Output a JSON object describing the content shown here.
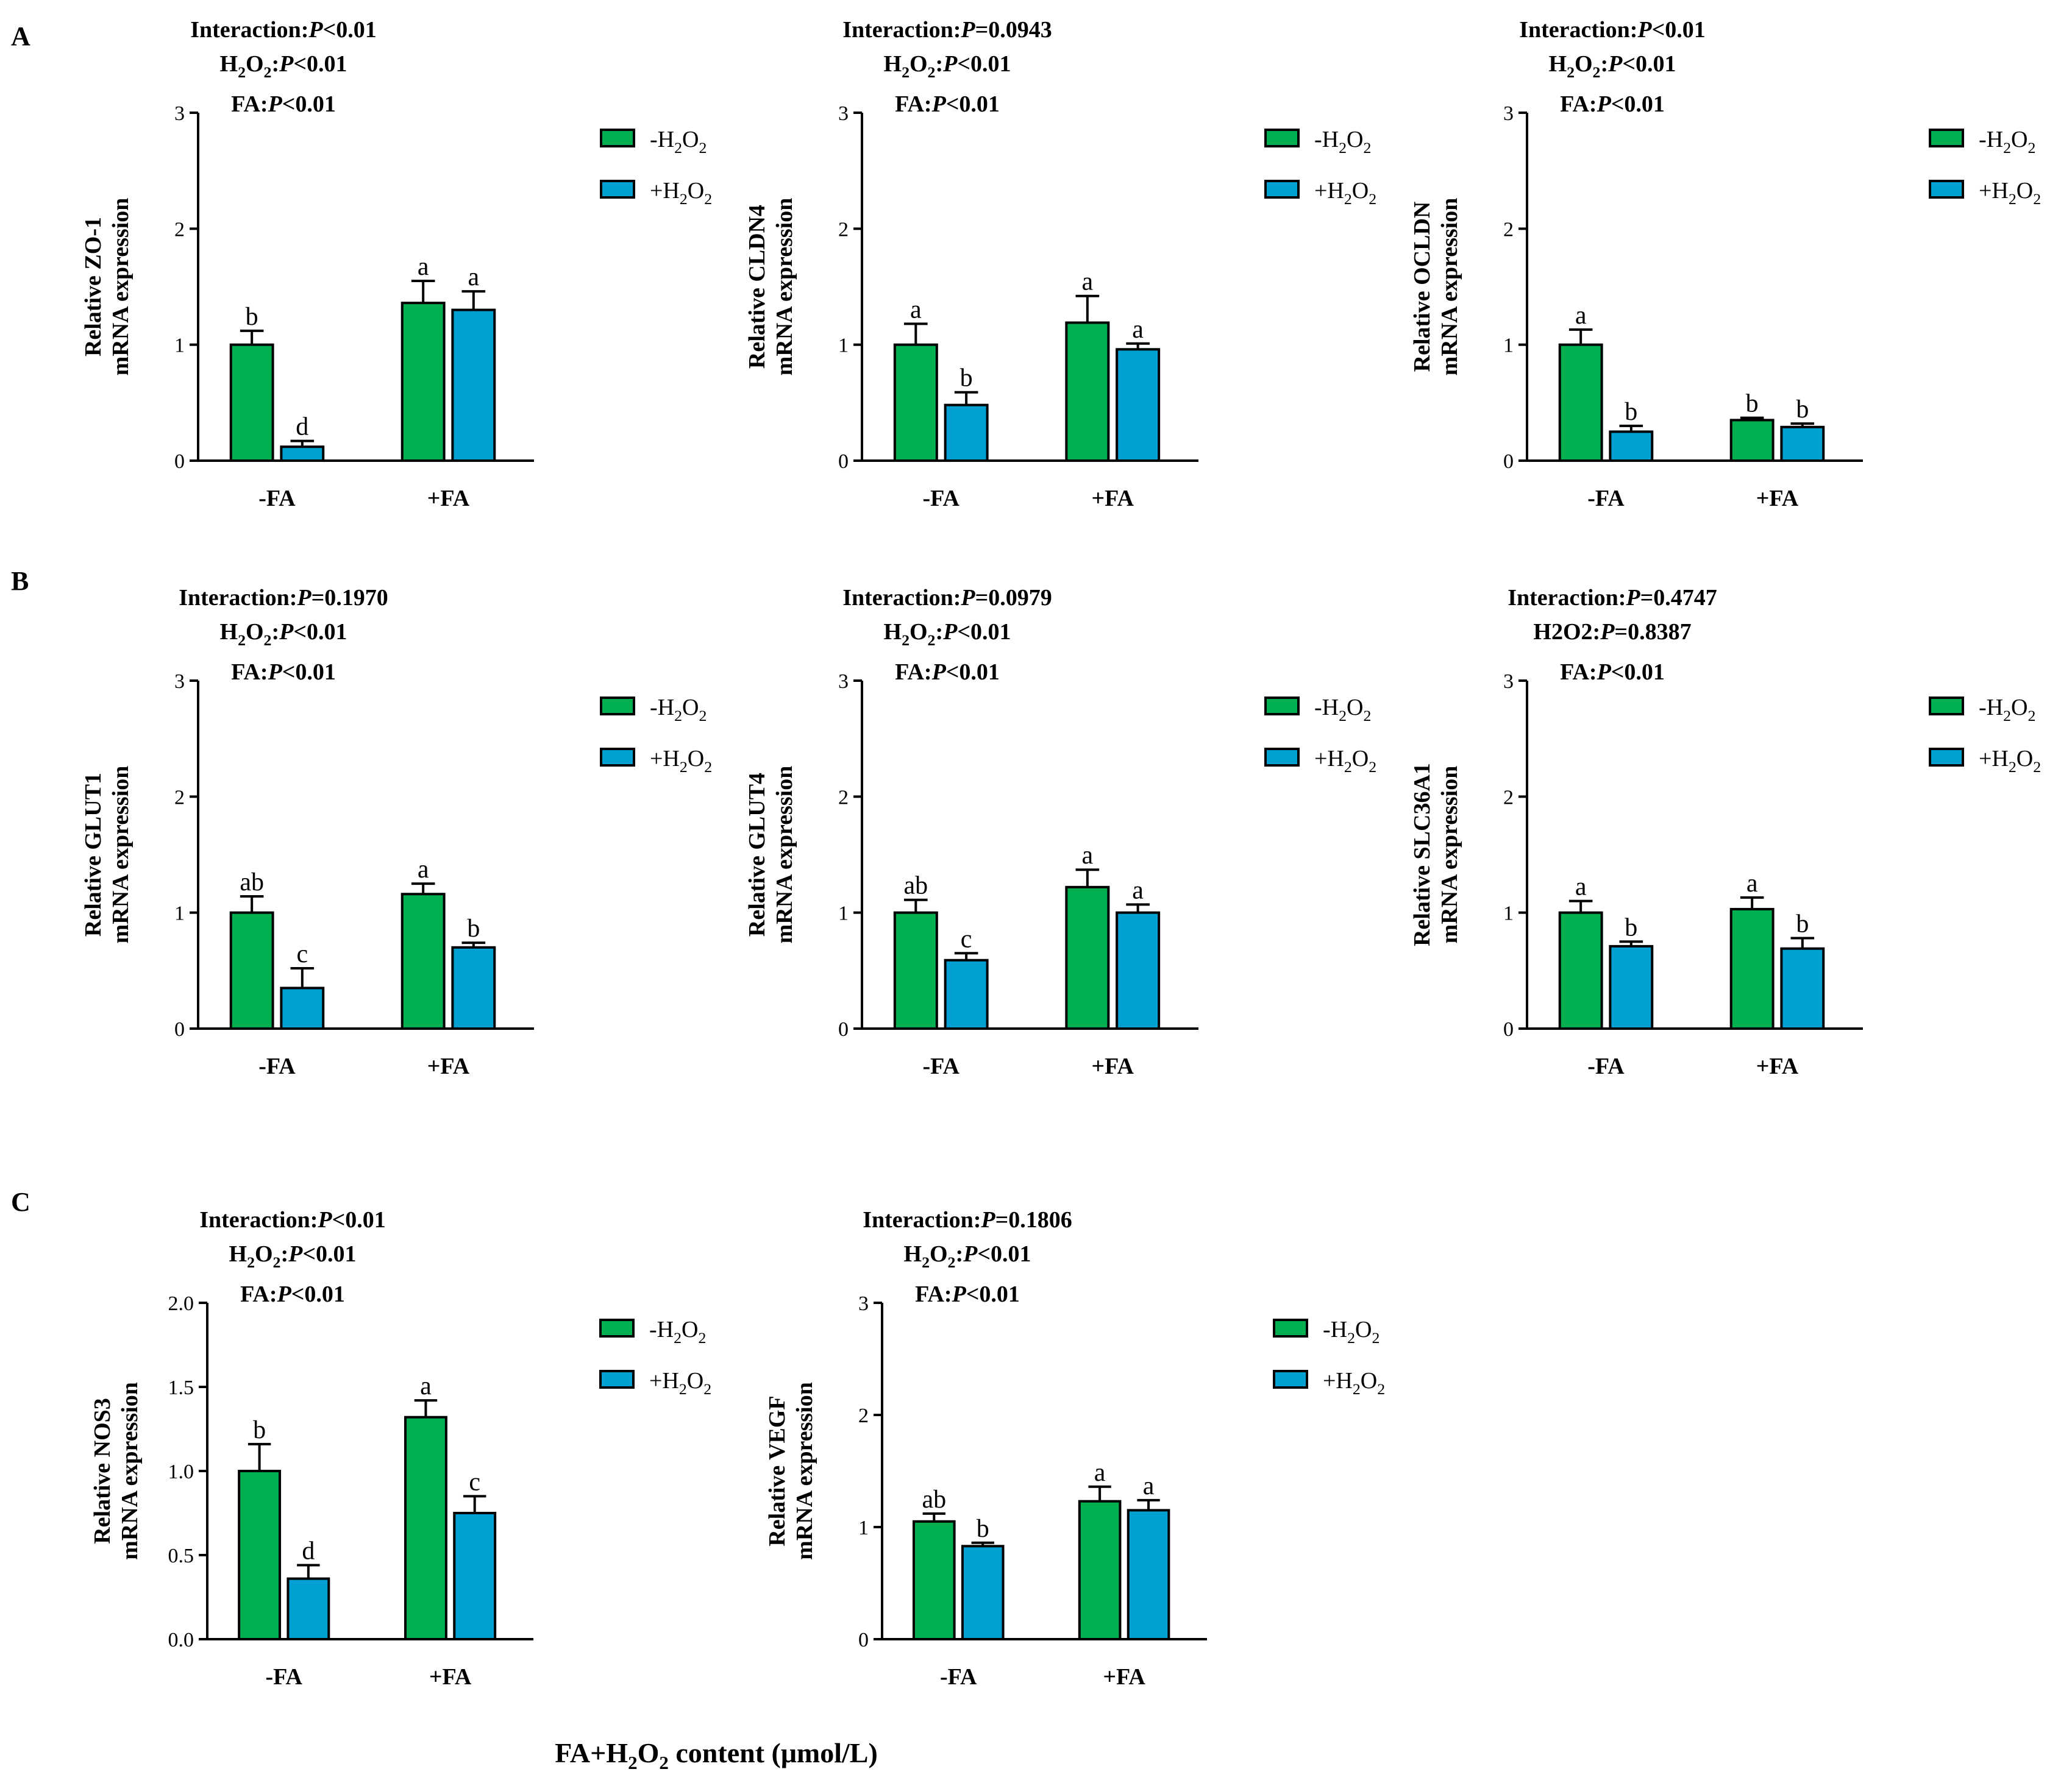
{
  "colors": {
    "green": "#00b050",
    "blue": "#00a0d2",
    "axis": "#000000"
  },
  "legend": {
    "minus_label": "-H",
    "plus_label": "+H",
    "sub": "2",
    "suffix_sub": "2"
  },
  "categories": [
    "-FA",
    "+FA"
  ],
  "x_title": {
    "prefix": "FA+H",
    "sub": "2",
    "rest": "O",
    "sub2": "2",
    "suffix": " content (μmol/L)"
  },
  "panels": [
    {
      "label": "A"
    },
    {
      "label": "B"
    },
    {
      "label": "C"
    }
  ],
  "chart_data": [
    {
      "type": "bar",
      "panel": "A",
      "ylabel_line1": "Relative ZO-1",
      "ylabel_line2": "mRNA expression",
      "ylim": [
        0,
        3
      ],
      "yticks": [
        "0",
        "1",
        "2",
        "3"
      ],
      "stats": {
        "interaction": "<0.01",
        "h2o2": "<0.01",
        "fa": "<0.01"
      },
      "categories": [
        "-FA",
        "+FA"
      ],
      "series": [
        {
          "name": "-H2O2",
          "values": [
            1.0,
            1.36
          ],
          "errors": [
            0.12,
            0.19
          ],
          "letters": [
            "b",
            "a"
          ]
        },
        {
          "name": "+H2O2",
          "values": [
            0.12,
            1.3
          ],
          "errors": [
            0.05,
            0.16
          ],
          "letters": [
            "d",
            "a"
          ]
        }
      ]
    },
    {
      "type": "bar",
      "panel": "A",
      "ylabel_line1": "Relative CLDN4",
      "ylabel_line2": "mRNA expression",
      "ylim": [
        0,
        3
      ],
      "yticks": [
        "0",
        "1",
        "2",
        "3"
      ],
      "stats": {
        "interaction": "=0.0943",
        "h2o2": "<0.01",
        "fa": "<0.01"
      },
      "categories": [
        "-FA",
        "+FA"
      ],
      "series": [
        {
          "name": "-H2O2",
          "values": [
            1.0,
            1.19
          ],
          "errors": [
            0.18,
            0.23
          ],
          "letters": [
            "a",
            "a"
          ]
        },
        {
          "name": "+H2O2",
          "values": [
            0.48,
            0.96
          ],
          "errors": [
            0.11,
            0.05
          ],
          "letters": [
            "b",
            "a"
          ]
        }
      ]
    },
    {
      "type": "bar",
      "panel": "A",
      "ylabel_line1": "Relative OCLDN",
      "ylabel_line2": "mRNA expression",
      "ylim": [
        0,
        3
      ],
      "yticks": [
        "0",
        "1",
        "2",
        "3"
      ],
      "stats": {
        "interaction": "<0.01",
        "h2o2": "<0.01",
        "fa": "<0.01"
      },
      "categories": [
        "-FA",
        "+FA"
      ],
      "series": [
        {
          "name": "-H2O2",
          "values": [
            1.0,
            0.35
          ],
          "errors": [
            0.13,
            0.02
          ],
          "letters": [
            "a",
            "b"
          ]
        },
        {
          "name": "+H2O2",
          "values": [
            0.25,
            0.29
          ],
          "errors": [
            0.05,
            0.03
          ],
          "letters": [
            "b",
            "b"
          ]
        }
      ]
    },
    {
      "type": "bar",
      "panel": "B",
      "ylabel_line1": "Relative GLUT1",
      "ylabel_line2": "mRNA expression",
      "ylim": [
        0,
        3
      ],
      "yticks": [
        "0",
        "1",
        "2",
        "3"
      ],
      "stats": {
        "interaction": "=0.1970",
        "h2o2": "<0.01",
        "fa": "<0.01"
      },
      "categories": [
        "-FA",
        "+FA"
      ],
      "series": [
        {
          "name": "-H2O2",
          "values": [
            1.0,
            1.16
          ],
          "errors": [
            0.14,
            0.09
          ],
          "letters": [
            "ab",
            "a"
          ]
        },
        {
          "name": "+H2O2",
          "values": [
            0.35,
            0.7
          ],
          "errors": [
            0.17,
            0.04
          ],
          "letters": [
            "c",
            "b"
          ]
        }
      ]
    },
    {
      "type": "bar",
      "panel": "B",
      "ylabel_line1": "Relative GLUT4",
      "ylabel_line2": "mRNA expression",
      "ylim": [
        0,
        3
      ],
      "yticks": [
        "0",
        "1",
        "2",
        "3"
      ],
      "stats": {
        "interaction": "=0.0979",
        "h2o2": "<0.01",
        "fa": "<0.01"
      },
      "categories": [
        "-FA",
        "+FA"
      ],
      "series": [
        {
          "name": "-H2O2",
          "values": [
            1.0,
            1.22
          ],
          "errors": [
            0.11,
            0.15
          ],
          "letters": [
            "ab",
            "a"
          ]
        },
        {
          "name": "+H2O2",
          "values": [
            0.59,
            1.0
          ],
          "errors": [
            0.06,
            0.07
          ],
          "letters": [
            "c",
            "a"
          ]
        }
      ]
    },
    {
      "type": "bar",
      "panel": "B",
      "ylabel_line1": "Relative SLC36A1",
      "ylabel_line2": "mRNA expression",
      "ylim": [
        0,
        3
      ],
      "yticks": [
        "0",
        "1",
        "2",
        "3"
      ],
      "stats": {
        "interaction": "=0.4747",
        "h2o2_plain": "H2O2:",
        "h2o2": "=0.8387",
        "fa": "<0.01"
      },
      "categories": [
        "-FA",
        "+FA"
      ],
      "series": [
        {
          "name": "-H2O2",
          "values": [
            1.0,
            1.03
          ],
          "errors": [
            0.1,
            0.1
          ],
          "letters": [
            "a",
            "a"
          ]
        },
        {
          "name": "+H2O2",
          "values": [
            0.71,
            0.69
          ],
          "errors": [
            0.04,
            0.09
          ],
          "letters": [
            "b",
            "b"
          ]
        }
      ]
    },
    {
      "type": "bar",
      "panel": "C",
      "ylabel_line1": "Relative NOS3",
      "ylabel_line2": "mRNA expression",
      "ylim": [
        0,
        2
      ],
      "yticks": [
        "0.0",
        "0.5",
        "1.0",
        "1.5",
        "2.0"
      ],
      "stats": {
        "interaction": "<0.01",
        "h2o2": "<0.01",
        "fa": "<0.01"
      },
      "categories": [
        "-FA",
        "+FA"
      ],
      "series": [
        {
          "name": "-H2O2",
          "values": [
            1.0,
            1.32
          ],
          "errors": [
            0.16,
            0.1
          ],
          "letters": [
            "b",
            "a"
          ]
        },
        {
          "name": "+H2O2",
          "values": [
            0.36,
            0.75
          ],
          "errors": [
            0.08,
            0.1
          ],
          "letters": [
            "d",
            "c"
          ]
        }
      ]
    },
    {
      "type": "bar",
      "panel": "C",
      "ylabel_line1": "Relative VEGF",
      "ylabel_line2": "mRNA expression",
      "ylim": [
        0,
        3
      ],
      "yticks": [
        "0",
        "1",
        "2",
        "3"
      ],
      "stats": {
        "interaction": "=0.1806",
        "h2o2": "<0.01",
        "fa": "<0.01"
      },
      "categories": [
        "-FA",
        "+FA"
      ],
      "series": [
        {
          "name": "-H2O2",
          "values": [
            1.05,
            1.23
          ],
          "errors": [
            0.07,
            0.13
          ],
          "letters": [
            "ab",
            "a"
          ]
        },
        {
          "name": "+H2O2",
          "values": [
            0.83,
            1.15
          ],
          "errors": [
            0.03,
            0.09
          ],
          "letters": [
            "b",
            "a"
          ]
        }
      ]
    }
  ]
}
